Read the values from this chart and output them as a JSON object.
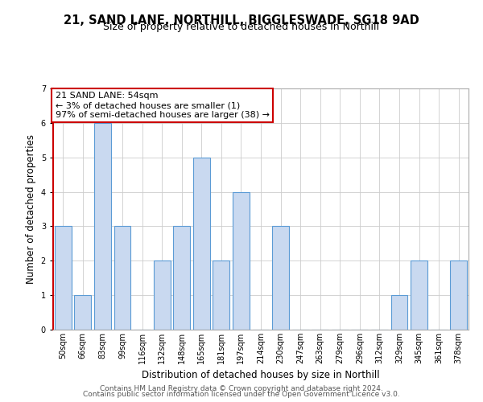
{
  "title1": "21, SAND LANE, NORTHILL, BIGGLESWADE, SG18 9AD",
  "title2": "Size of property relative to detached houses in Northill",
  "xlabel": "Distribution of detached houses by size in Northill",
  "ylabel": "Number of detached properties",
  "bins": [
    "50sqm",
    "66sqm",
    "83sqm",
    "99sqm",
    "116sqm",
    "132sqm",
    "148sqm",
    "165sqm",
    "181sqm",
    "197sqm",
    "214sqm",
    "230sqm",
    "247sqm",
    "263sqm",
    "279sqm",
    "296sqm",
    "312sqm",
    "329sqm",
    "345sqm",
    "361sqm",
    "378sqm"
  ],
  "counts": [
    3,
    1,
    6,
    3,
    0,
    2,
    3,
    5,
    2,
    4,
    0,
    3,
    0,
    0,
    0,
    0,
    0,
    1,
    2,
    0,
    2
  ],
  "bar_color": "#c9d9f0",
  "bar_edgecolor": "#5b9bd5",
  "red_color": "#cc0000",
  "annotation_title": "21 SAND LANE: 54sqm",
  "annotation_line1": "← 3% of detached houses are smaller (1)",
  "annotation_line2": "97% of semi-detached houses are larger (38) →",
  "annotation_box_edgecolor": "#cc0000",
  "annotation_box_facecolor": "#ffffff",
  "ylim": [
    0,
    7
  ],
  "yticks": [
    0,
    1,
    2,
    3,
    4,
    5,
    6,
    7
  ],
  "footer1": "Contains HM Land Registry data © Crown copyright and database right 2024.",
  "footer2": "Contains public sector information licensed under the Open Government Licence v3.0.",
  "title_fontsize": 10.5,
  "subtitle_fontsize": 9,
  "axis_label_fontsize": 8.5,
  "tick_fontsize": 7,
  "annotation_fontsize": 8,
  "footer_fontsize": 6.5
}
